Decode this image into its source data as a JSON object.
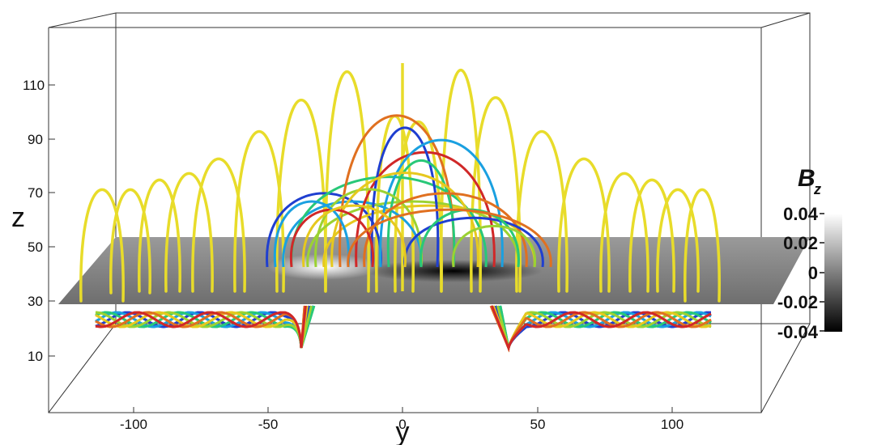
{
  "axes": {
    "z_label": "z",
    "y_label": "y",
    "z_ticks": [
      "110",
      "90",
      "70",
      "50",
      "30",
      "10"
    ],
    "y_ticks": [
      "-100",
      "-50",
      "0",
      "50",
      "100"
    ]
  },
  "colorbar": {
    "title_main": "B",
    "title_sub": "z",
    "ticks": [
      "0.04",
      "0.02",
      "0",
      "-0.02",
      "-0.04"
    ],
    "range": [
      -0.04,
      0.04
    ],
    "gradient_colors": [
      "#ffffff",
      "#7f7f7f",
      "#000000"
    ]
  },
  "colors": {
    "arcade_loops": "#e8dc2a",
    "tube_palette": [
      "#1f3fd0",
      "#1aa0e0",
      "#28c878",
      "#9bd232",
      "#e6c81e",
      "#e07020",
      "#d02828"
    ],
    "photosphere_plane": "#8c8c8c"
  }
}
